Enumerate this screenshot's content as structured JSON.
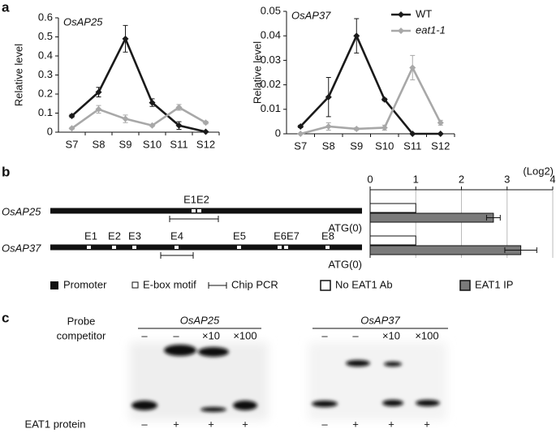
{
  "panels": [
    "a",
    "b",
    "c"
  ],
  "chart_data": [
    {
      "type": "line",
      "title": "OsAP25",
      "y_label": "Relative level",
      "categories": [
        "S7",
        "S8",
        "S9",
        "S10",
        "S11",
        "S12"
      ],
      "ylim": [
        0,
        0.6
      ],
      "yticks": [
        0,
        0.1,
        0.2,
        0.3,
        0.4,
        0.5,
        0.6
      ],
      "series": [
        {
          "color": "#1a1a1a",
          "marker": "diamond",
          "values": [
            0.085,
            0.21,
            0.49,
            0.155,
            0.035,
            0.002
          ],
          "errors": [
            0.008,
            0.025,
            0.07,
            0.02,
            0.02,
            0.003
          ]
        },
        {
          "color": "#a8a8a8",
          "marker": "diamond",
          "values": [
            0.02,
            0.12,
            0.07,
            0.035,
            0.13,
            0.05
          ],
          "errors": [
            0.005,
            0.02,
            0.02,
            0.005,
            0.015,
            0.007
          ]
        }
      ]
    },
    {
      "type": "line",
      "title": "OsAP37",
      "y_label": "Relative level",
      "categories": [
        "S7",
        "S8",
        "S9",
        "S10",
        "S11",
        "S12"
      ],
      "ylim": [
        0,
        0.05
      ],
      "yticks": [
        0,
        0.01,
        0.02,
        0.03,
        0.04,
        0.05
      ],
      "legend": "upper right",
      "series": [
        {
          "name": "WT",
          "color": "#1a1a1a",
          "marker": "diamond",
          "values": [
            0.003,
            0.015,
            0.04,
            0.014,
            0,
            0
          ],
          "errors": [
            0.0005,
            0.008,
            0.007,
            0.0005,
            0,
            0
          ]
        },
        {
          "name": "eat1-1",
          "color": "#a8a8a8",
          "marker": "diamond",
          "values": [
            0,
            0.003,
            0.002,
            0.0025,
            0.027,
            0.0045
          ],
          "errors": [
            0,
            0.0015,
            0.0005,
            0.001,
            0.005,
            0.001
          ]
        }
      ]
    },
    {
      "type": "bar",
      "orientation": "horizontal",
      "x_label": "(Log2)",
      "categories": [
        "OsAP25",
        "OsAP37"
      ],
      "xlim": [
        0,
        4
      ],
      "xticks": [
        0,
        1,
        2,
        3,
        4
      ],
      "grid": true,
      "series": [
        {
          "name": "No EAT1 Ab",
          "color": "#ffffff",
          "values": [
            1,
            1
          ]
        },
        {
          "name": "EAT1 IP",
          "color": "#7a7a7a",
          "values": [
            2.7,
            3.3
          ],
          "errors": [
            0.15,
            0.35
          ]
        }
      ]
    }
  ],
  "diagram": {
    "rows": [
      {
        "motifs": [
          "E1E2"
        ],
        "start": "ATG(0)"
      },
      {
        "motifs": [
          "E1",
          "E2",
          "E3",
          "E4",
          "E5",
          "E6E7",
          "E8"
        ],
        "start": "ATG(0)"
      }
    ],
    "legend": [
      "Promoter",
      "E-box motif",
      "Chip PCR"
    ]
  },
  "gel": {
    "probe_label": [
      "Probe",
      "competitor"
    ],
    "protein_label": "EAT1 protein",
    "gels": [
      {
        "title": "OsAP25",
        "competitor": [
          "–",
          "–",
          "×10",
          "×100"
        ],
        "protein": [
          "–",
          "+",
          "+",
          "+"
        ]
      },
      {
        "title": "OsAP37",
        "competitor": [
          "–",
          "–",
          "×10",
          "×100"
        ],
        "protein": [
          "–",
          "+",
          "+",
          "+"
        ]
      }
    ]
  }
}
